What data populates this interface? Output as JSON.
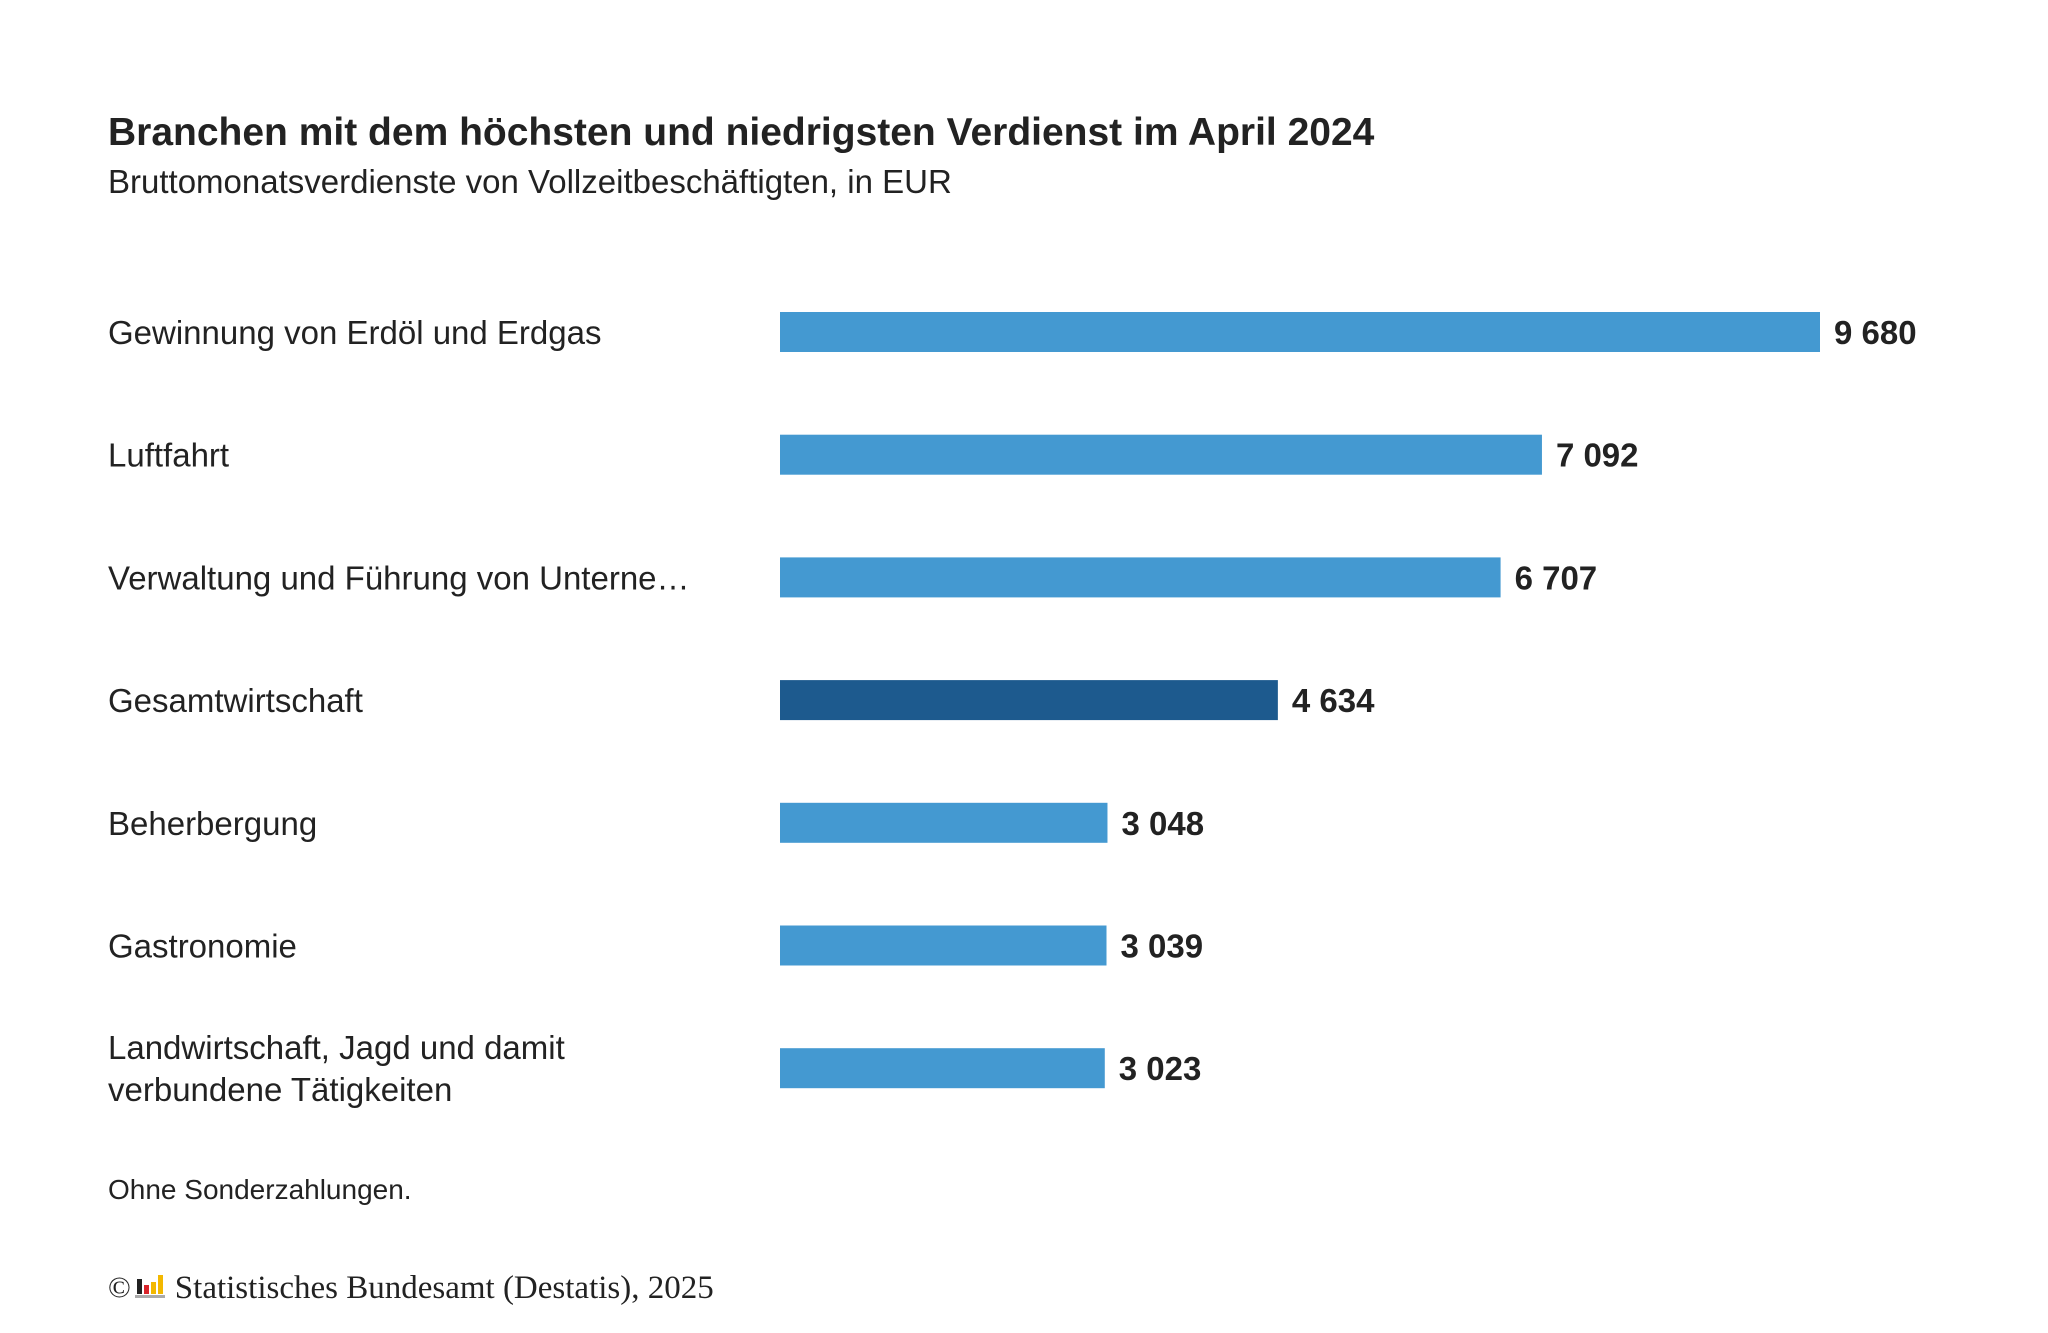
{
  "title": "Branchen mit dem höchsten und niedrigsten Verdienst im April 2024",
  "subtitle": "Bruttomonatsverdienste von Vollzeitbeschäftigten, in EUR",
  "footnote": "Ohne Sonderzahlungen.",
  "source": {
    "copyright_symbol": "©",
    "text": "Statistisches Bundesamt (Destatis), 2025",
    "logo_icon": "destatis-logo-icon"
  },
  "colors": {
    "bar": "#4499d1",
    "bar_highlight": "#1d5a8e",
    "text": "#222222"
  },
  "chart_data": {
    "type": "bar",
    "orientation": "horizontal",
    "title": "Branchen mit dem höchsten und niedrigsten Verdienst im April 2024",
    "subtitle": "Bruttomonatsverdienste von Vollzeitbeschäftigten, in EUR",
    "xlabel": "",
    "ylabel": "",
    "xlim": [
      0,
      9680
    ],
    "grid": false,
    "legend": "none",
    "categories": [
      [
        "Gewinnung von Erdöl und Erdgas"
      ],
      [
        "Luftfahrt"
      ],
      [
        "Verwaltung und Führung von Unterne…"
      ],
      [
        "Gesamtwirtschaft"
      ],
      [
        "Beherbergung"
      ],
      [
        "Gastronomie"
      ],
      [
        "Landwirtschaft, Jagd und damit",
        "verbundene Tätigkeiten"
      ]
    ],
    "values": [
      9680,
      7092,
      6707,
      4634,
      3048,
      3039,
      3023
    ],
    "value_labels": [
      "9 680",
      "7 092",
      "6 707",
      "4 634",
      "3 048",
      "3 039",
      "3 023"
    ],
    "highlighted": [
      false,
      false,
      false,
      true,
      false,
      false,
      false
    ]
  }
}
